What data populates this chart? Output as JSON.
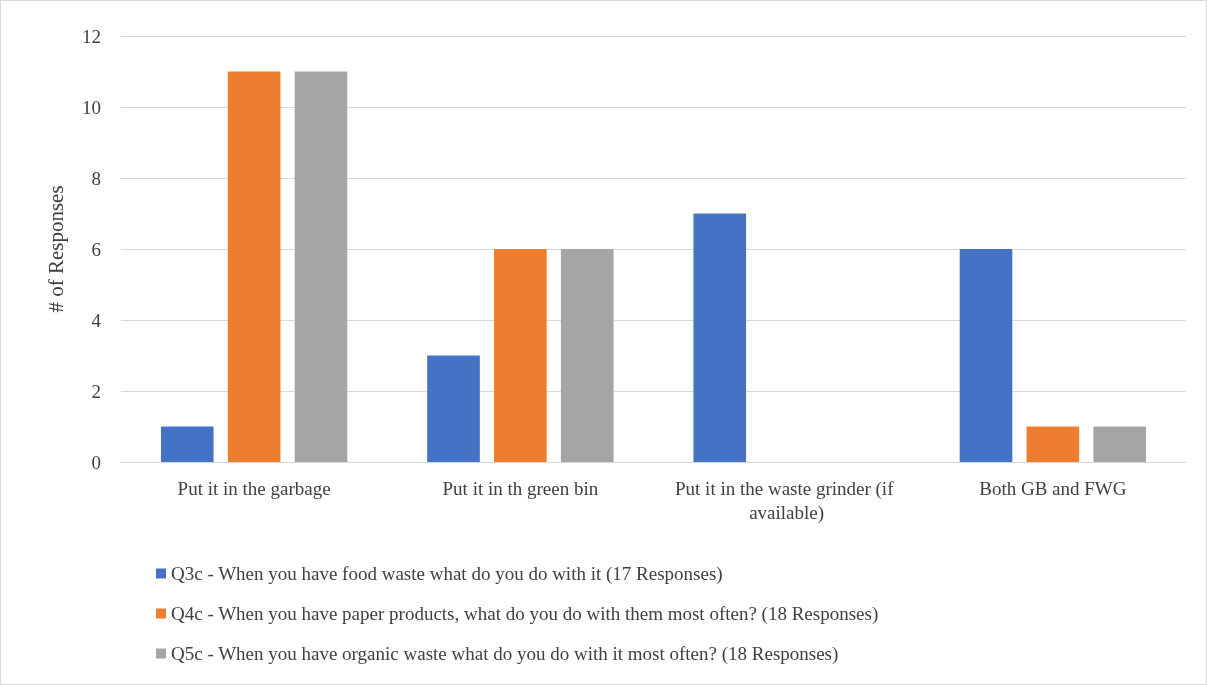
{
  "chart_data": {
    "type": "bar",
    "categories": [
      "Put it in the garbage",
      "Put it in th green bin",
      "Put it in the waste grinder (if available)",
      "Both GB and FWG"
    ],
    "series": [
      {
        "name": "Q3c - When you have food waste what do you do with it (17 Responses)",
        "color": "#4472c4",
        "values": [
          1,
          3,
          7,
          6
        ]
      },
      {
        "name": "Q4c - When you have paper products, what do you do with them most often? (18 Responses)",
        "color": "#ed7d31",
        "values": [
          11,
          6,
          0,
          1
        ]
      },
      {
        "name": "Q5c - When you have organic waste what do you do with it most often? (18 Responses)",
        "color": "#a5a5a5",
        "values": [
          11,
          6,
          0,
          1
        ]
      }
    ],
    "ylabel": "# of Responses",
    "ylim": [
      0,
      12
    ],
    "yticks": [
      0,
      2,
      4,
      6,
      8,
      10,
      12
    ],
    "grid": "y",
    "legend": "bottom"
  }
}
